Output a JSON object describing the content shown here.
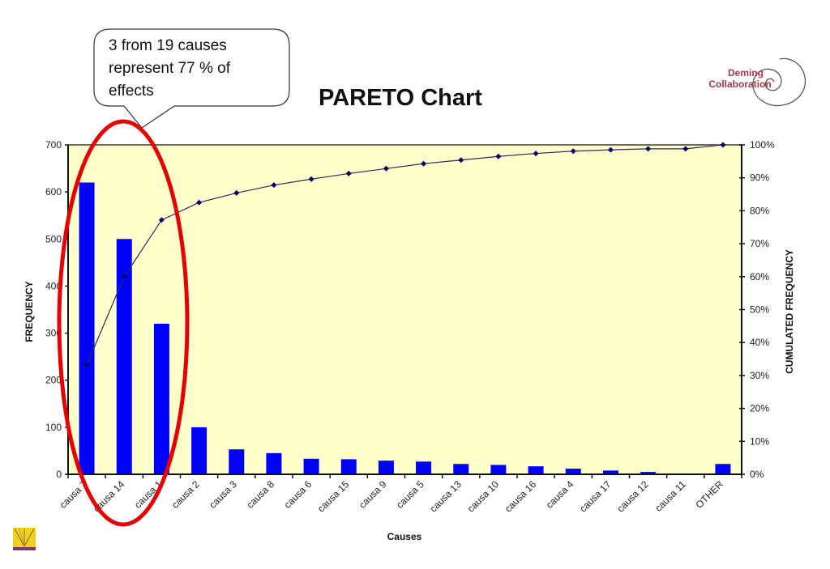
{
  "annotation": {
    "lines": [
      "3 from 19 causes",
      "represent 77 % of",
      "effects"
    ]
  },
  "title": "PARETO Chart",
  "logo": {
    "line1": "Deming",
    "line2": "Collaboration",
    "color": "#a8384f"
  },
  "colors": {
    "plot_background": "#ffffcc",
    "bar": "#0000ff",
    "line": "#2b2b5e",
    "marker": "#000066",
    "highlight_ellipse": "#e60000"
  },
  "chart_data": {
    "type": "bar",
    "title": "PARETO Chart",
    "xlabel": "Causes",
    "ylabel": "FREQUENCY",
    "y2label": "CUMULATED FREQUENCY",
    "ylim": [
      0,
      700
    ],
    "y2lim": [
      0,
      100
    ],
    "y_ticks": [
      0,
      100,
      200,
      300,
      400,
      500,
      600,
      700
    ],
    "y2_ticks": [
      "0%",
      "10%",
      "20%",
      "30%",
      "40%",
      "50%",
      "60%",
      "70%",
      "80%",
      "90%",
      "100%"
    ],
    "grid": false,
    "legend": null,
    "categories": [
      "causa 7",
      "causa 14",
      "causa 1",
      "causa 2",
      "causa 3",
      "causa 8",
      "causa 6",
      "causa 15",
      "causa 9",
      "causa 5",
      "causa 13",
      "causa 10",
      "causa 16",
      "causa 4",
      "causa 17",
      "causa 12",
      "causa 11",
      "OTHER"
    ],
    "series": [
      {
        "name": "Frequency",
        "type": "bar",
        "axis": "left",
        "values": [
          620,
          500,
          320,
          100,
          53,
          45,
          33,
          32,
          29,
          27,
          22,
          20,
          17,
          12,
          8,
          5,
          1,
          22
        ]
      },
      {
        "name": "Cumulated frequency (%)",
        "type": "line",
        "axis": "right",
        "values": [
          33.2,
          60.0,
          77.2,
          82.5,
          85.4,
          87.8,
          89.6,
          91.3,
          92.8,
          94.3,
          95.4,
          96.5,
          97.4,
          98.1,
          98.5,
          98.8,
          98.8,
          100.0
        ]
      }
    ],
    "annotations": [
      "3 from 19 causes represent 77 % of effects"
    ]
  }
}
